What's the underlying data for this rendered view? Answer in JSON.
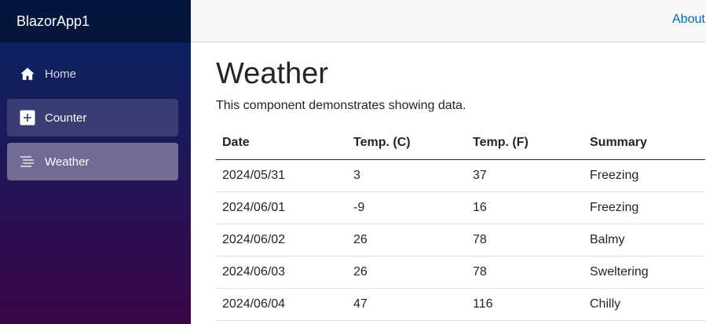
{
  "app": {
    "brand": "BlazorApp1"
  },
  "sidebar": {
    "items": [
      {
        "label": "Home",
        "icon": "home-icon"
      },
      {
        "label": "Counter",
        "icon": "plus-square-icon"
      },
      {
        "label": "Weather",
        "icon": "list-icon"
      }
    ]
  },
  "top_row": {
    "about": "About"
  },
  "page": {
    "title": "Weather",
    "intro": "This component demonstrates showing data."
  },
  "table": {
    "headers": [
      "Date",
      "Temp. (C)",
      "Temp. (F)",
      "Summary"
    ],
    "rows": [
      [
        "2024/05/31",
        "3",
        "37",
        "Freezing"
      ],
      [
        "2024/06/01",
        "-9",
        "16",
        "Freezing"
      ],
      [
        "2024/06/02",
        "26",
        "78",
        "Balmy"
      ],
      [
        "2024/06/03",
        "26",
        "78",
        "Sweltering"
      ],
      [
        "2024/06/04",
        "47",
        "116",
        "Chilly"
      ]
    ]
  },
  "colors": {
    "sidebar_top": "#052767",
    "sidebar_bottom": "#3a0647",
    "link": "#006bb7"
  }
}
